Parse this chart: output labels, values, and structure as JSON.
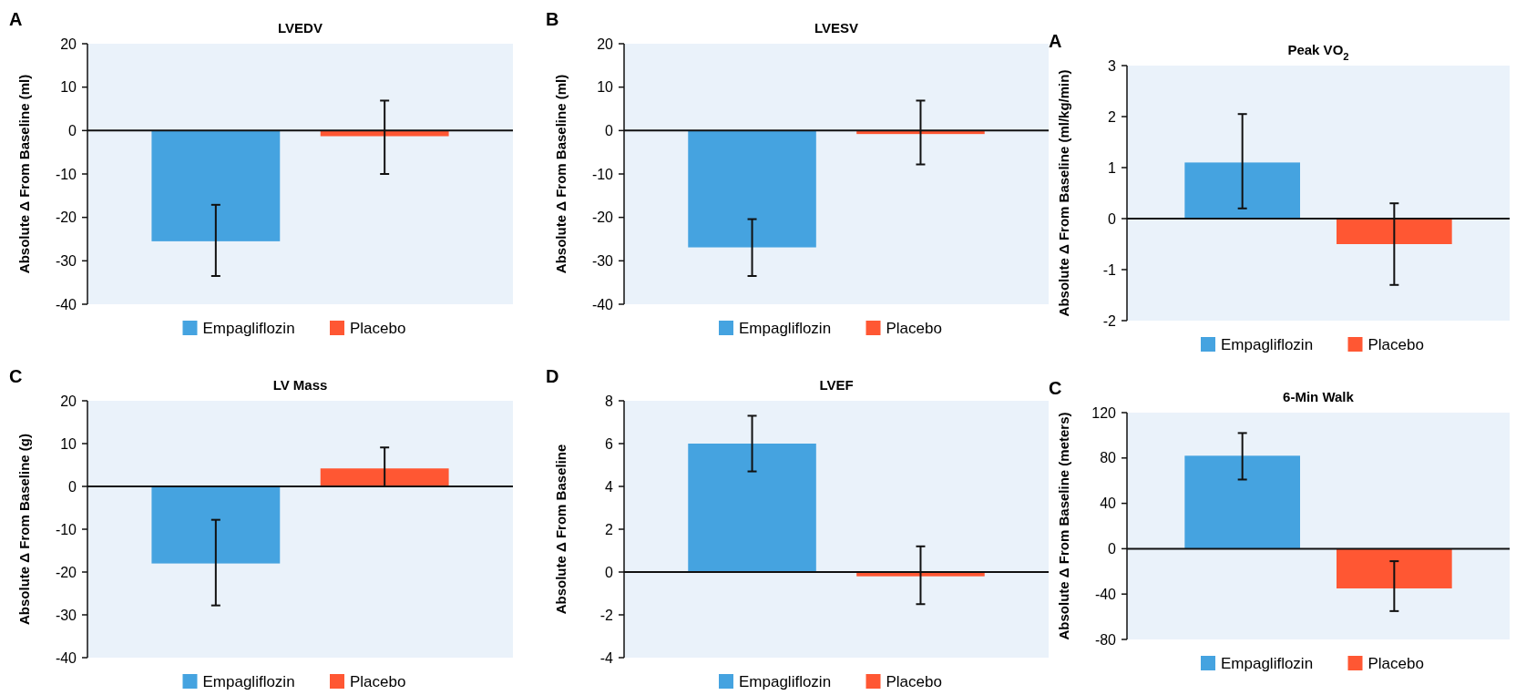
{
  "chart_data": [
    {
      "type": "bar",
      "title": "LVEDV",
      "annotations": [
        "A"
      ],
      "ylabel": "Absolute Δ From Baseline (ml)",
      "categories": [
        null
      ],
      "ylim": [
        -40,
        20
      ],
      "yticks": [
        -40,
        -30,
        -20,
        -10,
        0,
        10,
        20
      ],
      "legend": "bottom",
      "series": [
        {
          "name": "Empagliflozin",
          "color": "#45a3e0",
          "values": [
            -25.5
          ],
          "errors": [
            [
              -33.5,
              -17.1
            ]
          ]
        },
        {
          "name": "Placebo",
          "color": "#ff5733",
          "values": [
            -1.3
          ],
          "errors": [
            [
              -10,
              6.9
            ]
          ]
        }
      ]
    },
    {
      "type": "bar",
      "title": "LVESV",
      "annotations": [
        "B"
      ],
      "ylabel": "Absolute Δ From Baseline (ml)",
      "categories": [
        null
      ],
      "ylim": [
        -40,
        20
      ],
      "yticks": [
        -40,
        -30,
        -20,
        -10,
        0,
        10,
        20
      ],
      "legend": "bottom",
      "series": [
        {
          "name": "Empagliflozin",
          "color": "#45a3e0",
          "values": [
            -26.9
          ],
          "errors": [
            [
              -33.5,
              -20.4
            ]
          ]
        },
        {
          "name": "Placebo",
          "color": "#ff5733",
          "values": [
            -0.8
          ],
          "errors": [
            [
              -7.8,
              6.9
            ]
          ]
        }
      ]
    },
    {
      "type": "bar",
      "title": "Peak VO$_{2}$",
      "annotations": [
        "A"
      ],
      "ylabel": "Absolute Δ From Baseline (ml/kg/min)",
      "categories": [
        null
      ],
      "ylim": [
        -2,
        3
      ],
      "yticks": [
        -2,
        -1,
        0,
        1,
        2,
        3
      ],
      "legend": "bottom",
      "series": [
        {
          "name": "Empagliflozin",
          "color": "#45a3e0",
          "values": [
            1.1
          ],
          "errors": [
            [
              0.2,
              2.05
            ]
          ]
        },
        {
          "name": "Placebo",
          "color": "#ff5733",
          "values": [
            -0.5
          ],
          "errors": [
            [
              -1.3,
              0.3
            ]
          ]
        }
      ]
    },
    {
      "type": "bar",
      "title": "LV Mass",
      "annotations": [
        "C"
      ],
      "ylabel": "Absolute Δ From Baseline (g)",
      "categories": [
        null
      ],
      "ylim": [
        -40,
        20
      ],
      "yticks": [
        -40,
        -30,
        -20,
        -10,
        0,
        10,
        20
      ],
      "legend": "bottom",
      "series": [
        {
          "name": "Empagliflozin",
          "color": "#45a3e0",
          "values": [
            -18
          ],
          "errors": [
            [
              -27.8,
              -7.8
            ]
          ]
        },
        {
          "name": "Placebo",
          "color": "#ff5733",
          "values": [
            4.2
          ],
          "errors": [
            [
              0,
              9.1
            ]
          ]
        }
      ]
    },
    {
      "type": "bar",
      "title": "LVEF",
      "annotations": [
        "D"
      ],
      "ylabel": "Absolute Δ From Baseline",
      "categories": [
        null
      ],
      "ylim": [
        -4,
        8
      ],
      "yticks": [
        -4,
        -2,
        0,
        2,
        4,
        6,
        8
      ],
      "legend": "bottom",
      "series": [
        {
          "name": "Empagliflozin",
          "color": "#45a3e0",
          "values": [
            6.0
          ],
          "errors": [
            [
              4.7,
              7.3
            ]
          ]
        },
        {
          "name": "Placebo",
          "color": "#ff5733",
          "values": [
            -0.2
          ],
          "errors": [
            [
              -1.5,
              1.2
            ]
          ]
        }
      ]
    },
    {
      "type": "bar",
      "title": "6-Min Walk",
      "annotations": [
        "C"
      ],
      "ylabel": "Absolute Δ From Baseline (meters)",
      "categories": [
        null
      ],
      "ylim": [
        -80,
        120
      ],
      "yticks": [
        -80,
        -40,
        0,
        40,
        80,
        120
      ],
      "legend": "bottom",
      "series": [
        {
          "name": "Empagliflozin",
          "color": "#45a3e0",
          "values": [
            82
          ],
          "errors": [
            [
              61,
              102
            ]
          ]
        },
        {
          "name": "Placebo",
          "color": "#ff5733",
          "values": [
            -35
          ],
          "errors": [
            [
              -55,
              -11
            ]
          ]
        }
      ]
    }
  ]
}
